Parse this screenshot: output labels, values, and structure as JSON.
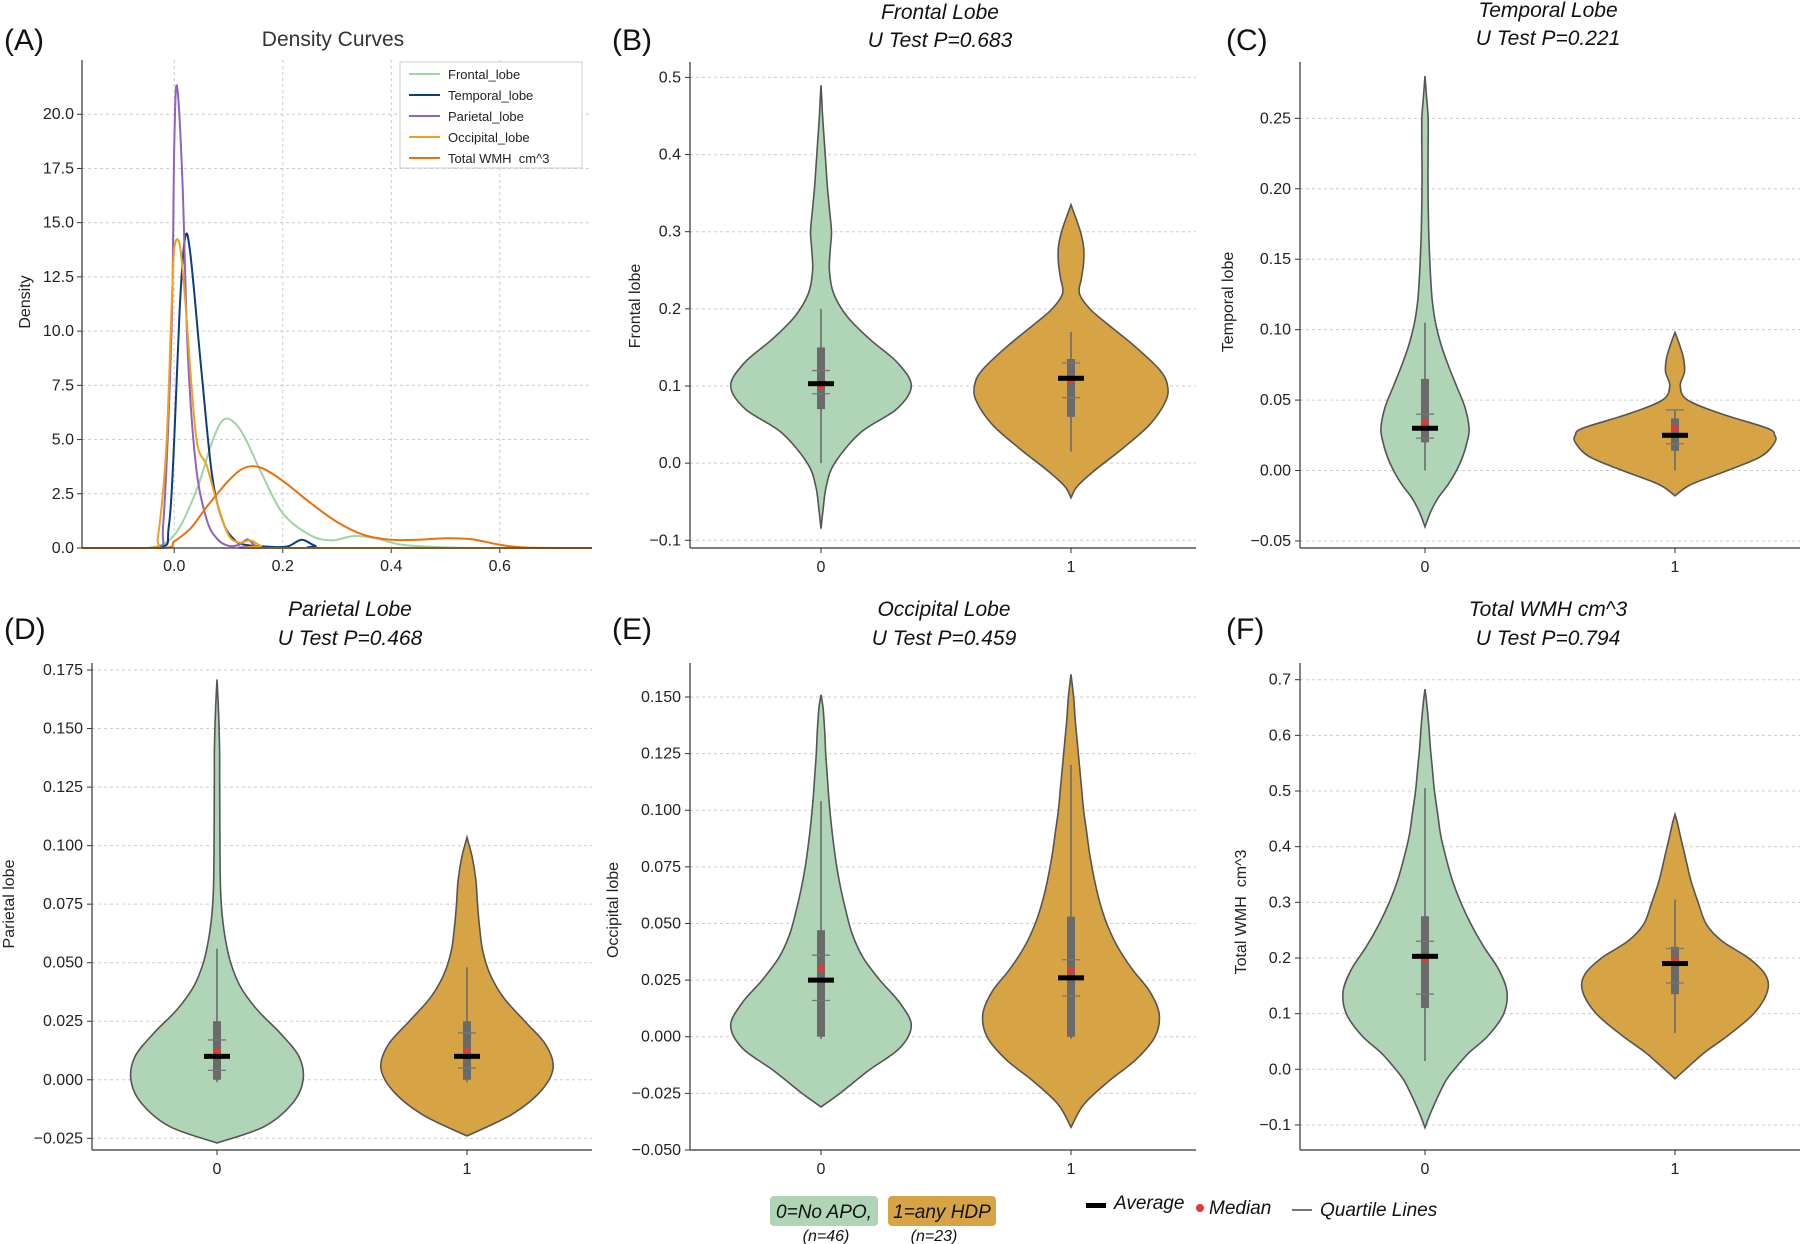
{
  "figure": {
    "name": "WMH lobe violin figure"
  },
  "colors": {
    "group0": "#b0d4b6",
    "group1": "#d6a444",
    "outline": "#555555",
    "box": "#6a6a6a",
    "mean": "#000000",
    "median": "#e53935",
    "grid": "#cccccc"
  },
  "chart_data": [
    {
      "id": "A",
      "type": "line",
      "letter": "(A)",
      "title": "Density Curves",
      "xlabel": "",
      "ylabel": "Density",
      "xlim": [
        -0.17,
        0.77
      ],
      "ylim": [
        0,
        22.5
      ],
      "xticks": [
        0.0,
        0.2,
        0.4,
        0.6
      ],
      "xtick_labels": [
        "0.0",
        "0.2",
        "0.4",
        "0.6"
      ],
      "yticks": [
        0.0,
        2.5,
        5.0,
        7.5,
        10.0,
        12.5,
        15.0,
        17.5,
        20.0
      ],
      "ytick_labels": [
        "0.0",
        "2.5",
        "5.0",
        "7.5",
        "10.0",
        "12.5",
        "15.0",
        "17.5",
        "20.0"
      ],
      "grid": true,
      "legend_position": "top-right",
      "series": [
        {
          "name": "Frontal_lobe",
          "color": "#9fd4a3",
          "x": [
            -0.17,
            -0.05,
            0.0,
            0.04,
            0.07,
            0.09,
            0.11,
            0.13,
            0.16,
            0.2,
            0.25,
            0.29,
            0.33,
            0.37,
            0.42,
            0.5,
            0.6,
            0.77
          ],
          "y": [
            0,
            0,
            0.6,
            2.6,
            4.9,
            5.9,
            5.8,
            5.1,
            3.5,
            1.6,
            0.6,
            0.35,
            0.55,
            0.45,
            0.15,
            0.03,
            0,
            0
          ]
        },
        {
          "name": "Temporal_lobe",
          "color": "#0d3d7a",
          "x": [
            -0.17,
            -0.03,
            -0.01,
            0.0,
            0.01,
            0.02,
            0.03,
            0.05,
            0.07,
            0.09,
            0.11,
            0.13,
            0.18,
            0.21,
            0.235,
            0.26,
            0.29,
            0.77
          ],
          "y": [
            0,
            0,
            1.0,
            5.0,
            11.0,
            14.3,
            13.5,
            8.2,
            3.3,
            1.2,
            0.4,
            0.15,
            0.05,
            0.08,
            0.38,
            0.1,
            0,
            0
          ]
        },
        {
          "name": "Parietal_lobe",
          "color": "#8e64c0",
          "x": [
            -0.17,
            -0.035,
            -0.02,
            -0.005,
            0.0,
            0.005,
            0.015,
            0.025,
            0.04,
            0.06,
            0.08,
            0.1,
            0.12,
            0.135,
            0.15,
            0.17,
            0.77
          ],
          "y": [
            0,
            0,
            1.2,
            10.0,
            18.5,
            21.3,
            17.0,
            9.0,
            3.8,
            1.3,
            0.4,
            0.1,
            0.15,
            0.4,
            0.1,
            0,
            0
          ]
        },
        {
          "name": "Occipital_lobe",
          "color": "#f0a020",
          "x": [
            -0.17,
            -0.04,
            -0.03,
            -0.015,
            -0.005,
            0.0,
            0.01,
            0.02,
            0.04,
            0.06,
            0.08,
            0.1,
            0.12,
            0.14,
            0.16,
            0.18,
            0.77
          ],
          "y": [
            0,
            0,
            0.5,
            4.5,
            11.0,
            13.8,
            14.0,
            11.5,
            5.2,
            3.8,
            2.0,
            0.6,
            0.25,
            0.35,
            0.1,
            0,
            0
          ]
        },
        {
          "name": "Total WMH  cm^3",
          "color": "#e8720c",
          "x": [
            -0.17,
            -0.02,
            0.0,
            0.03,
            0.06,
            0.1,
            0.13,
            0.16,
            0.2,
            0.25,
            0.3,
            0.35,
            0.4,
            0.45,
            0.5,
            0.55,
            0.6,
            0.65,
            0.77
          ],
          "y": [
            0,
            0,
            0.3,
            0.9,
            1.9,
            3.1,
            3.7,
            3.7,
            3.1,
            2.1,
            1.2,
            0.6,
            0.38,
            0.38,
            0.45,
            0.4,
            0.15,
            0.02,
            0
          ]
        }
      ]
    },
    {
      "id": "B",
      "type": "violin",
      "letter": "(B)",
      "title_lines": [
        "Frontal Lobe",
        "U Test P=0.683"
      ],
      "ylabel": "Frontal lobe",
      "ylim": [
        -0.11,
        0.52
      ],
      "yticks": [
        -0.1,
        0.0,
        0.1,
        0.2,
        0.3,
        0.4,
        0.5
      ],
      "ytick_labels": [
        "−0.1",
        "0.0",
        "0.1",
        "0.2",
        "0.3",
        "0.4",
        "0.5"
      ],
      "categories": [
        "0",
        "1"
      ],
      "grid": true,
      "violins": [
        {
          "group": "0",
          "min": 0.0,
          "max": 0.2,
          "q1": 0.07,
          "q3": 0.15,
          "mean": 0.103,
          "median": 0.1,
          "quartile_lines": [
            0.09,
            0.12
          ],
          "shape_y": [
            -0.085,
            -0.06,
            -0.03,
            0.0,
            0.04,
            0.07,
            0.1,
            0.13,
            0.16,
            0.19,
            0.22,
            0.25,
            0.28,
            0.3,
            0.33,
            0.36,
            0.39,
            0.42,
            0.45,
            0.47,
            0.49
          ],
          "shape_w": [
            0,
            0.02,
            0.05,
            0.13,
            0.38,
            0.72,
            0.86,
            0.73,
            0.47,
            0.25,
            0.12,
            0.08,
            0.09,
            0.1,
            0.08,
            0.06,
            0.045,
            0.03,
            0.015,
            0.008,
            0
          ]
        },
        {
          "group": "1",
          "min": 0.015,
          "max": 0.17,
          "q1": 0.06,
          "q3": 0.135,
          "mean": 0.11,
          "median": 0.107,
          "quartile_lines": [
            0.085,
            0.13
          ],
          "shape_y": [
            -0.045,
            -0.03,
            -0.01,
            0.02,
            0.05,
            0.08,
            0.1,
            0.12,
            0.15,
            0.18,
            0.2,
            0.22,
            0.24,
            0.26,
            0.28,
            0.3,
            0.32,
            0.335
          ],
          "shape_w": [
            0,
            0.06,
            0.22,
            0.5,
            0.75,
            0.9,
            0.92,
            0.85,
            0.62,
            0.35,
            0.18,
            0.08,
            0.1,
            0.12,
            0.12,
            0.09,
            0.04,
            0
          ]
        }
      ]
    },
    {
      "id": "C",
      "type": "violin",
      "letter": "(C)",
      "title_lines": [
        "Temporal Lobe",
        "U Test P=0.221"
      ],
      "ylabel": "Temporal lobe",
      "ylim": [
        -0.055,
        0.29
      ],
      "yticks": [
        -0.05,
        0.0,
        0.05,
        0.1,
        0.15,
        0.2,
        0.25
      ],
      "ytick_labels": [
        "−0.05",
        "0.00",
        "0.05",
        "0.10",
        "0.15",
        "0.20",
        "0.25"
      ],
      "categories": [
        "0",
        "1"
      ],
      "grid": true,
      "violins": [
        {
          "group": "0",
          "min": 0.0,
          "max": 0.105,
          "q1": 0.02,
          "q3": 0.065,
          "mean": 0.03,
          "median": 0.034,
          "quartile_lines": [
            0.023,
            0.04
          ],
          "shape_y": [
            -0.04,
            -0.03,
            -0.02,
            -0.01,
            0.0,
            0.01,
            0.02,
            0.03,
            0.045,
            0.06,
            0.075,
            0.09,
            0.105,
            0.12,
            0.135,
            0.15,
            0.17,
            0.19,
            0.21,
            0.23,
            0.25,
            0.265,
            0.28
          ],
          "shape_w": [
            0,
            0.05,
            0.12,
            0.22,
            0.3,
            0.36,
            0.4,
            0.42,
            0.38,
            0.3,
            0.22,
            0.15,
            0.1,
            0.07,
            0.055,
            0.045,
            0.035,
            0.03,
            0.028,
            0.03,
            0.03,
            0.015,
            0
          ]
        },
        {
          "group": "1",
          "min": 0.0,
          "max": 0.043,
          "q1": 0.014,
          "q3": 0.037,
          "mean": 0.025,
          "median": 0.03,
          "quartile_lines": [
            0.019,
            0.043
          ],
          "shape_y": [
            -0.018,
            -0.01,
            0.0,
            0.01,
            0.02,
            0.025,
            0.03,
            0.04,
            0.05,
            0.06,
            0.07,
            0.08,
            0.09,
            0.098
          ],
          "shape_w": [
            0,
            0.15,
            0.5,
            0.82,
            0.95,
            0.95,
            0.88,
            0.45,
            0.12,
            0.05,
            0.09,
            0.08,
            0.04,
            0
          ]
        }
      ]
    },
    {
      "id": "D",
      "type": "violin",
      "letter": "(D)",
      "title_lines": [
        "Parietal Lobe",
        "U Test P=0.468"
      ],
      "ylabel": "Parietal lobe",
      "ylim": [
        -0.03,
        0.178
      ],
      "yticks": [
        -0.025,
        0.0,
        0.025,
        0.05,
        0.075,
        0.1,
        0.125,
        0.15,
        0.175
      ],
      "ytick_labels": [
        "−0.025",
        "0.000",
        "0.025",
        "0.050",
        "0.075",
        "0.100",
        "0.125",
        "0.150",
        "0.175"
      ],
      "categories": [
        "0",
        "1"
      ],
      "grid": true,
      "violins": [
        {
          "group": "0",
          "min": -0.001,
          "max": 0.056,
          "q1": 0.0,
          "q3": 0.025,
          "mean": 0.01,
          "median": 0.012,
          "quartile_lines": [
            0.004,
            0.017
          ],
          "shape_y": [
            -0.027,
            -0.02,
            -0.01,
            0.0,
            0.01,
            0.02,
            0.03,
            0.04,
            0.05,
            0.06,
            0.07,
            0.08,
            0.09,
            0.1,
            0.11,
            0.12,
            0.13,
            0.14,
            0.15,
            0.16,
            0.171
          ],
          "shape_w": [
            0,
            0.45,
            0.72,
            0.82,
            0.78,
            0.6,
            0.38,
            0.22,
            0.13,
            0.08,
            0.05,
            0.035,
            0.03,
            0.028,
            0.027,
            0.026,
            0.025,
            0.025,
            0.02,
            0.012,
            0
          ]
        },
        {
          "group": "1",
          "min": -0.001,
          "max": 0.048,
          "q1": 0.0,
          "q3": 0.025,
          "mean": 0.01,
          "median": 0.012,
          "quartile_lines": [
            0.005,
            0.02
          ],
          "shape_y": [
            -0.024,
            -0.015,
            -0.005,
            0.005,
            0.015,
            0.025,
            0.035,
            0.045,
            0.055,
            0.065,
            0.075,
            0.085,
            0.095,
            0.1035
          ],
          "shape_w": [
            0,
            0.42,
            0.7,
            0.82,
            0.75,
            0.55,
            0.35,
            0.22,
            0.15,
            0.12,
            0.1,
            0.085,
            0.05,
            0
          ]
        }
      ]
    },
    {
      "id": "E",
      "type": "violin",
      "letter": "(E)",
      "title_lines": [
        "Occipital Lobe",
        "U Test P=0.459"
      ],
      "ylabel": "Occipital lobe",
      "ylim": [
        -0.05,
        0.165
      ],
      "yticks": [
        -0.05,
        -0.025,
        0.0,
        0.025,
        0.05,
        0.075,
        0.1,
        0.125,
        0.15
      ],
      "ytick_labels": [
        "−0.050",
        "−0.025",
        "0.000",
        "0.025",
        "0.050",
        "0.075",
        "0.100",
        "0.125",
        "0.150"
      ],
      "categories": [
        "0",
        "1"
      ],
      "grid": true,
      "violins": [
        {
          "group": "0",
          "min": -0.001,
          "max": 0.104,
          "q1": 0.0,
          "q3": 0.047,
          "mean": 0.025,
          "median": 0.03,
          "quartile_lines": [
            0.016,
            0.036
          ],
          "shape_y": [
            -0.031,
            -0.025,
            -0.015,
            -0.005,
            0.005,
            0.015,
            0.025,
            0.035,
            0.045,
            0.055,
            0.065,
            0.075,
            0.085,
            0.095,
            0.105,
            0.115,
            0.125,
            0.135,
            0.145,
            0.151
          ],
          "shape_w": [
            0,
            0.18,
            0.45,
            0.75,
            0.86,
            0.75,
            0.56,
            0.4,
            0.3,
            0.24,
            0.19,
            0.15,
            0.12,
            0.095,
            0.075,
            0.06,
            0.045,
            0.035,
            0.02,
            0
          ]
        },
        {
          "group": "1",
          "min": -0.001,
          "max": 0.12,
          "q1": 0.0,
          "q3": 0.053,
          "mean": 0.026,
          "median": 0.029,
          "quartile_lines": [
            0.018,
            0.034
          ],
          "shape_y": [
            -0.04,
            -0.03,
            -0.02,
            -0.01,
            0.0,
            0.01,
            0.02,
            0.03,
            0.04,
            0.05,
            0.06,
            0.07,
            0.08,
            0.09,
            0.1,
            0.11,
            0.12,
            0.13,
            0.14,
            0.15,
            0.16
          ],
          "shape_w": [
            0,
            0.12,
            0.35,
            0.62,
            0.8,
            0.84,
            0.75,
            0.58,
            0.44,
            0.34,
            0.27,
            0.22,
            0.18,
            0.15,
            0.12,
            0.1,
            0.08,
            0.06,
            0.04,
            0.025,
            0
          ]
        }
      ]
    },
    {
      "id": "F",
      "type": "violin",
      "letter": "(F)",
      "title_lines": [
        "Total WMH cm^3",
        "U Test P=0.794"
      ],
      "ylabel": "Total WMH  cm^3",
      "ylim": [
        -0.145,
        0.73
      ],
      "yticks": [
        -0.1,
        0.0,
        0.1,
        0.2,
        0.3,
        0.4,
        0.5,
        0.6,
        0.7
      ],
      "ytick_labels": [
        "−0.1",
        "0.0",
        "0.1",
        "0.2",
        "0.3",
        "0.4",
        "0.5",
        "0.6",
        "0.7"
      ],
      "categories": [
        "0",
        "1"
      ],
      "grid": true,
      "violins": [
        {
          "group": "0",
          "min": 0.015,
          "max": 0.505,
          "q1": 0.11,
          "q3": 0.275,
          "mean": 0.203,
          "median": 0.198,
          "quartile_lines": [
            0.135,
            0.23
          ],
          "shape_y": [
            -0.105,
            -0.08,
            -0.05,
            -0.02,
            0.0,
            0.03,
            0.06,
            0.1,
            0.14,
            0.18,
            0.22,
            0.26,
            0.3,
            0.34,
            0.38,
            0.42,
            0.46,
            0.5,
            0.54,
            0.58,
            0.62,
            0.66,
            0.683
          ],
          "shape_w": [
            0,
            0.05,
            0.12,
            0.2,
            0.28,
            0.42,
            0.6,
            0.75,
            0.78,
            0.7,
            0.56,
            0.44,
            0.34,
            0.26,
            0.2,
            0.15,
            0.12,
            0.09,
            0.07,
            0.05,
            0.035,
            0.015,
            0
          ]
        },
        {
          "group": "1",
          "min": 0.065,
          "max": 0.305,
          "q1": 0.135,
          "q3": 0.22,
          "mean": 0.19,
          "median": 0.195,
          "quartile_lines": [
            0.155,
            0.217
          ],
          "shape_y": [
            -0.017,
            0.0,
            0.03,
            0.06,
            0.1,
            0.14,
            0.17,
            0.2,
            0.23,
            0.26,
            0.3,
            0.34,
            0.38,
            0.42,
            0.445,
            0.458
          ],
          "shape_w": [
            0,
            0.1,
            0.28,
            0.5,
            0.75,
            0.88,
            0.86,
            0.7,
            0.45,
            0.3,
            0.22,
            0.15,
            0.1,
            0.05,
            0.02,
            0
          ]
        }
      ]
    }
  ],
  "footer": {
    "group0_label": "0=No APO,",
    "group0_n": "(n=46)",
    "group1_label": "1=any HDP",
    "group1_n": "(n=23)",
    "average_label": "Average",
    "median_label": "Median",
    "quartile_label": "Quartile Lines"
  }
}
